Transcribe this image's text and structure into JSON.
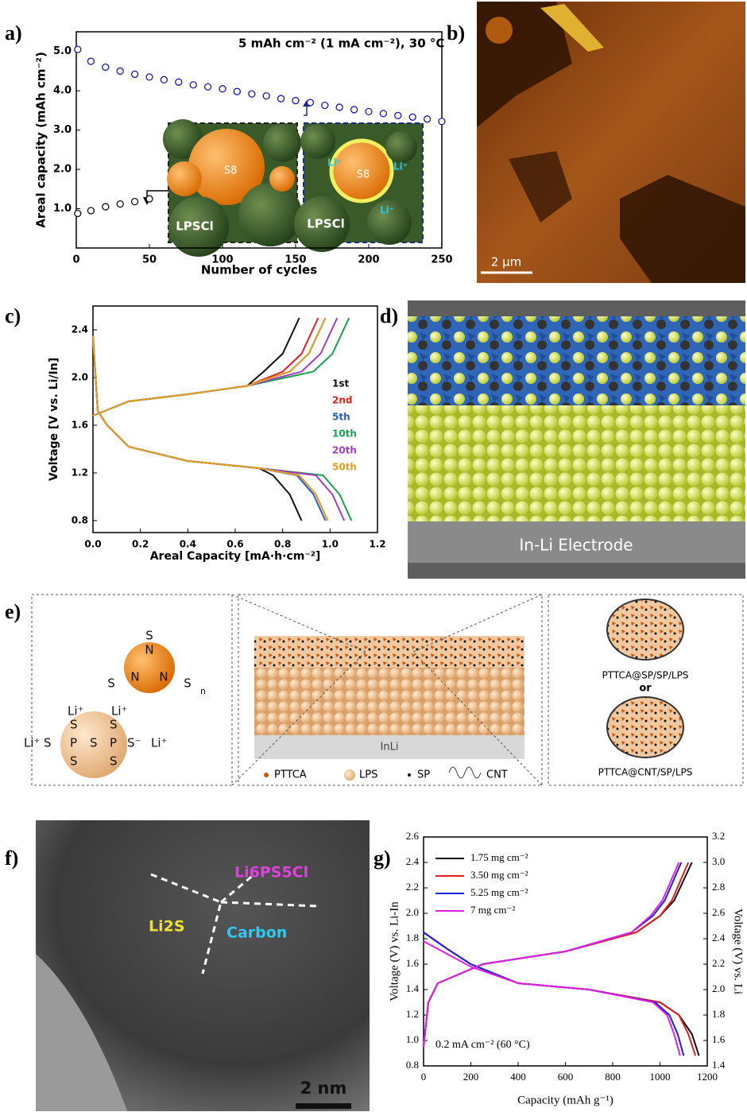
{
  "panel_labels": [
    "a)",
    "b)",
    "c)",
    "d)",
    "e)",
    "f)",
    "g)"
  ],
  "chart_data": [
    {
      "type": "scatter",
      "annotation": "5 mAh cm⁻² (1 mA cm⁻²), 30 °C",
      "x_label": "Number of cycles",
      "y_label": "Areal capacity (mAh cm⁻²)",
      "xlim": [
        0,
        250
      ],
      "xticks": [
        0,
        50,
        100,
        150,
        200,
        250
      ],
      "ylim": [
        0,
        5.5
      ],
      "yticks": [
        {
          "value": 1,
          "label": "1.0"
        },
        {
          "value": 2,
          "label": "2.0"
        },
        {
          "value": 3,
          "label": "3.0"
        },
        {
          "value": 4,
          "label": "4.0"
        },
        {
          "value": 5,
          "label": "5.0"
        }
      ],
      "series": [
        {
          "color": "#1a1aa6",
          "x": [
            1,
            10,
            20,
            30,
            40,
            50,
            60,
            70,
            80,
            90,
            100,
            110,
            120,
            130,
            140,
            150,
            160,
            170,
            180,
            190,
            200,
            210,
            220,
            230,
            240,
            250
          ],
          "values": [
            5.05,
            4.75,
            4.6,
            4.5,
            4.42,
            4.35,
            4.28,
            4.22,
            4.15,
            4.1,
            4.05,
            3.98,
            3.92,
            3.87,
            3.8,
            3.75,
            3.7,
            3.63,
            3.58,
            3.52,
            3.47,
            3.42,
            3.37,
            3.33,
            3.28,
            3.22
          ]
        },
        {
          "color": "#111111",
          "x": [
            1,
            10,
            20,
            30,
            40,
            50
          ],
          "values": [
            0.88,
            0.95,
            1.05,
            1.12,
            1.18,
            1.25
          ]
        }
      ]
    },
    {
      "type": "line",
      "x_label": "Areal Capacity [mA·h·cm⁻²]",
      "y_label": "Voltage [V vs. Li/In]",
      "xlim": [
        0,
        1.2
      ],
      "xticks": [
        {
          "value": 0,
          "label": "0.0"
        },
        0.2,
        0.4,
        0.6,
        0.8,
        {
          "value": 1,
          "label": "1.0"
        },
        1.2
      ],
      "ylim": [
        0.7,
        2.6
      ],
      "yticks": [
        0.8,
        1.2,
        1.6,
        {
          "value": 2,
          "label": "2.0"
        },
        2.4
      ],
      "series": [
        {
          "name": "1st",
          "color": "#111111",
          "x": [
            0,
            0.05,
            0.15,
            0.4,
            0.65,
            0.72,
            0.8,
            0.87,
            null,
            0,
            0.02,
            0.06,
            0.15,
            0.4,
            0.7,
            0.76,
            0.83,
            0.88
          ],
          "values": [
            1.68,
            1.72,
            1.8,
            1.86,
            1.93,
            2.05,
            2.2,
            2.5,
            null,
            2.35,
            1.72,
            1.6,
            1.42,
            1.3,
            1.24,
            1.18,
            1.02,
            0.8
          ]
        },
        {
          "name": "2nd",
          "color": "#e02020",
          "x": [
            0,
            0.05,
            0.15,
            0.4,
            0.65,
            0.8,
            0.88,
            0.95,
            null,
            0,
            0.02,
            0.06,
            0.15,
            0.4,
            0.7,
            0.87,
            0.94,
            0.99
          ],
          "values": [
            1.68,
            1.72,
            1.8,
            1.86,
            1.93,
            2.05,
            2.2,
            2.5,
            null,
            2.35,
            1.72,
            1.6,
            1.42,
            1.3,
            1.24,
            1.18,
            1.02,
            0.8
          ]
        },
        {
          "name": "5th",
          "color": "#2a5cc8",
          "x": [
            0,
            0.05,
            0.15,
            0.4,
            0.65,
            0.83,
            0.91,
            0.98,
            null,
            0,
            0.02,
            0.06,
            0.15,
            0.4,
            0.7,
            0.86,
            0.93,
            0.98
          ],
          "values": [
            1.68,
            1.72,
            1.8,
            1.86,
            1.93,
            2.05,
            2.2,
            2.5,
            null,
            2.35,
            1.72,
            1.6,
            1.42,
            1.3,
            1.24,
            1.18,
            1.02,
            0.8
          ]
        },
        {
          "name": "10th",
          "color": "#1aa050",
          "x": [
            0,
            0.05,
            0.15,
            0.4,
            0.65,
            0.93,
            1.01,
            1.08,
            null,
            0,
            0.02,
            0.06,
            0.15,
            0.4,
            0.7,
            0.97,
            1.04,
            1.09
          ],
          "values": [
            1.68,
            1.72,
            1.8,
            1.86,
            1.93,
            2.05,
            2.2,
            2.5,
            null,
            2.35,
            1.72,
            1.6,
            1.42,
            1.3,
            1.24,
            1.18,
            1.02,
            0.8
          ]
        },
        {
          "name": "20th",
          "color": "#a040c0",
          "x": [
            0,
            0.05,
            0.15,
            0.4,
            0.65,
            0.88,
            0.96,
            1.03,
            null,
            0,
            0.02,
            0.06,
            0.15,
            0.4,
            0.7,
            0.94,
            1.01,
            1.06
          ],
          "values": [
            1.68,
            1.72,
            1.8,
            1.86,
            1.93,
            2.05,
            2.2,
            2.5,
            null,
            2.35,
            1.72,
            1.6,
            1.42,
            1.3,
            1.24,
            1.18,
            1.02,
            0.8
          ]
        },
        {
          "name": "50th",
          "color": "#e0a020",
          "x": [
            0,
            0.05,
            0.15,
            0.4,
            0.65,
            0.83,
            0.91,
            0.98,
            null,
            0,
            0.02,
            0.06,
            0.15,
            0.4,
            0.7,
            0.87,
            0.94,
            0.99
          ],
          "values": [
            1.68,
            1.72,
            1.8,
            1.86,
            1.93,
            2.05,
            2.2,
            2.5,
            null,
            2.35,
            1.72,
            1.6,
            1.42,
            1.3,
            1.24,
            1.18,
            1.02,
            0.8
          ]
        }
      ]
    },
    {
      "type": "line",
      "annotation": "0.2 mA cm⁻² (60 °C)",
      "x_label": "Capacity (mAh g⁻¹)",
      "y_label": "Voltage (V) vs. Li-In",
      "y2_label": "Voltage (V) vs. Li",
      "xlim": [
        0,
        1200
      ],
      "xticks": [
        0,
        200,
        400,
        600,
        800,
        1000,
        1200
      ],
      "ylim": [
        0.8,
        2.6
      ],
      "yticks": [
        0.8,
        {
          "value": 1,
          "label": "1.0"
        },
        1.2,
        1.4,
        1.6,
        1.8,
        {
          "value": 2,
          "label": "2.0"
        },
        2.2,
        2.4,
        2.6
      ],
      "y2lim": [
        1.4,
        3.2
      ],
      "y2ticks": [
        1.4,
        1.6,
        1.8,
        {
          "value": 2,
          "label": "2.0"
        },
        2.2,
        2.4,
        2.6,
        2.8,
        {
          "value": 3,
          "label": "3.0"
        },
        3.2
      ],
      "series": [
        {
          "name": "1.75 mg cm⁻²",
          "color": "#111111",
          "x": [
            0,
            20,
            60,
            250,
            600,
            900,
            1000,
            1060,
            1135,
            null,
            0,
            100,
            200,
            400,
            700,
            1000,
            1080,
            1135,
            1165
          ],
          "values": [
            0.95,
            1.3,
            1.45,
            1.6,
            1.7,
            1.85,
            1.98,
            2.1,
            2.4,
            null,
            1.85,
            1.72,
            1.6,
            1.45,
            1.4,
            1.3,
            1.2,
            1.05,
            0.88
          ]
        },
        {
          "name": "3.50 mg cm⁻²",
          "color": "#e02020",
          "x": [
            0,
            20,
            60,
            250,
            600,
            900,
            1000,
            1050,
            1120,
            null,
            0,
            100,
            200,
            400,
            700,
            1000,
            1080,
            1120,
            1150
          ],
          "values": [
            0.95,
            1.3,
            1.45,
            1.6,
            1.7,
            1.85,
            1.98,
            2.1,
            2.4,
            null,
            1.85,
            1.72,
            1.6,
            1.45,
            1.4,
            1.3,
            1.2,
            1.05,
            0.88
          ]
        },
        {
          "name": "5.25 mg cm⁻²",
          "color": "#2020e0",
          "x": [
            0,
            20,
            60,
            250,
            600,
            880,
            970,
            1020,
            1090,
            null,
            0,
            100,
            200,
            400,
            700,
            980,
            1040,
            1075,
            1100
          ],
          "values": [
            0.95,
            1.3,
            1.45,
            1.6,
            1.7,
            1.85,
            1.98,
            2.1,
            2.4,
            null,
            1.85,
            1.72,
            1.6,
            1.45,
            1.4,
            1.3,
            1.2,
            1.05,
            0.88
          ]
        },
        {
          "name": "7 mg cm⁻²",
          "color": "#e020e0",
          "x": [
            0,
            20,
            60,
            250,
            600,
            880,
            960,
            1010,
            1080,
            null,
            0,
            100,
            200,
            400,
            700,
            970,
            1030,
            1060,
            1085
          ],
          "values": [
            0.95,
            1.3,
            1.45,
            1.6,
            1.7,
            1.85,
            1.98,
            2.1,
            2.4,
            null,
            1.78,
            1.68,
            1.58,
            1.45,
            1.4,
            1.3,
            1.2,
            1.05,
            0.88
          ]
        }
      ]
    }
  ],
  "panel_a_inset": {
    "left_s8": "S8",
    "left_lpscl": "LPSCl",
    "right_s8": "S8",
    "right_lpscl": "LPSCl",
    "li": "Li⁺"
  },
  "panel_b": {
    "scale_bar": "2 µm"
  },
  "panel_d": {
    "electrode": "In-Li Electrode"
  },
  "panel_e": {
    "structure": {
      "s": "S",
      "n": "N",
      "n_sub": "n",
      "li": "Li⁺",
      "p": "P",
      "s_minus": "S⁻"
    },
    "anode": "InLi",
    "legend": [
      "PTTCA",
      "LPS",
      "SP",
      "CNT"
    ],
    "option_1": "PTTCA@SP/SP/LPS",
    "or": "or",
    "option_2": "PTTCA@CNT/SP/LPS"
  },
  "panel_f": {
    "li6ps5cl": "Li6PS5Cl",
    "li2s": "Li2S",
    "carbon": "Carbon",
    "scale_bar": "2 nm"
  }
}
